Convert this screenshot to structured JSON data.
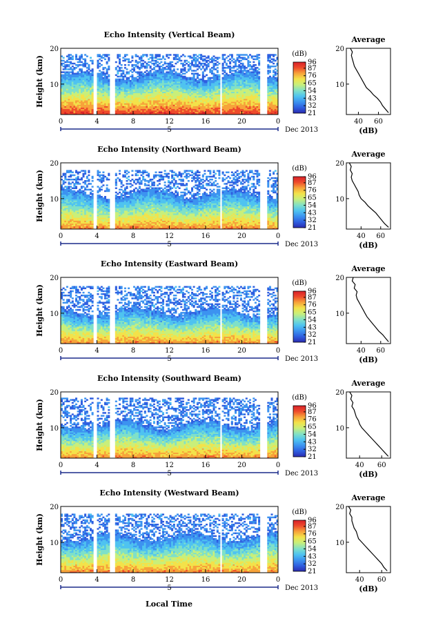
{
  "figure": {
    "xlabel": "Local Time",
    "date_label": "Dec 2013",
    "day_label": "5",
    "colorbar_unit": "(dB)",
    "average_title": "Average",
    "average_xlabel": "(dB)",
    "colors": {
      "scale": [
        "#2b2bb0",
        "#2f5fe0",
        "#3c93f0",
        "#4fc3f0",
        "#7fe0c8",
        "#c9ef7a",
        "#f3e24a",
        "#f7a33a",
        "#ee4b2b",
        "#d8202a"
      ]
    }
  },
  "chart_data": [
    {
      "type": "heatmap",
      "title": "Echo Intensity (Vertical Beam)",
      "ylabel": "Height (km)",
      "xlabel": "Local Time",
      "x_ticks": [
        "0",
        "4",
        "8",
        "12",
        "16",
        "20",
        "0"
      ],
      "y_ticks": [
        "20",
        "10"
      ],
      "xlim": [
        0,
        24
      ],
      "ylim": [
        1.5,
        20
      ],
      "colorbar": {
        "label": "(dB)",
        "ticks": [
          "96",
          "87",
          "76",
          "65",
          "54",
          "43",
          "32",
          "21"
        ],
        "range": [
          21,
          96
        ]
      },
      "echo_top_km": 18.5,
      "cloud_top_km": 12.5,
      "surface_peak_db": 88,
      "gaps_hours": [
        [
          3.6,
          4.0
        ],
        [
          5.5,
          5.9
        ],
        [
          17.6,
          17.9
        ],
        [
          22.1,
          22.8
        ]
      ],
      "average_profile": {
        "title": "Average",
        "xlabel": "(dB)",
        "x_ticks": [
          "40",
          "60"
        ],
        "y_ticks": [
          "20",
          "10"
        ],
        "xlim": [
          28,
          72
        ],
        "height_km": [
          2,
          3,
          4,
          5,
          6,
          7,
          8,
          9,
          10,
          11,
          12,
          13,
          14,
          15,
          16,
          17,
          18,
          19,
          20
        ],
        "db": [
          70,
          67,
          64,
          62,
          59,
          55,
          52,
          48,
          46,
          44,
          42,
          40,
          38,
          36,
          35,
          34,
          33,
          34,
          32
        ]
      }
    },
    {
      "type": "heatmap",
      "title": "Echo Intensity (Northward Beam)",
      "ylabel": "Height (km)",
      "xlabel": "Local Time",
      "x_ticks": [
        "0",
        "4",
        "8",
        "12",
        "16",
        "20",
        "0"
      ],
      "y_ticks": [
        "20",
        "10"
      ],
      "xlim": [
        0,
        24
      ],
      "ylim": [
        1.5,
        20
      ],
      "colorbar": {
        "label": "(dB)",
        "ticks": [
          "96",
          "87",
          "76",
          "65",
          "54",
          "43",
          "32",
          "21"
        ],
        "range": [
          21,
          96
        ]
      },
      "echo_top_km": 18.0,
      "cloud_top_km": 11.5,
      "surface_peak_db": 80,
      "gaps_hours": [
        [
          3.6,
          4.0
        ],
        [
          5.5,
          5.9
        ],
        [
          17.6,
          17.9
        ],
        [
          22.1,
          22.8
        ]
      ],
      "average_profile": {
        "title": "Average",
        "xlabel": "(dB)",
        "x_ticks": [
          "40",
          "60"
        ],
        "y_ticks": [
          "20",
          "10"
        ],
        "xlim": [
          25,
          70
        ],
        "height_km": [
          2,
          3,
          4,
          5,
          6,
          7,
          8,
          9,
          10,
          11,
          12,
          13,
          14,
          15,
          16,
          17,
          18,
          19,
          20
        ],
        "db": [
          68,
          64,
          61,
          58,
          55,
          51,
          47,
          44,
          40,
          38,
          37,
          35,
          33,
          31,
          30,
          31,
          29,
          30,
          28
        ]
      }
    },
    {
      "type": "heatmap",
      "title": "Echo Intensity (Eastward Beam)",
      "ylabel": "Height (km)",
      "xlabel": "Local Time",
      "x_ticks": [
        "0",
        "4",
        "8",
        "12",
        "16",
        "20",
        "0"
      ],
      "y_ticks": [
        "20",
        "10"
      ],
      "xlim": [
        0,
        24
      ],
      "ylim": [
        1.5,
        20
      ],
      "colorbar": {
        "label": "(dB)",
        "ticks": [
          "96",
          "87",
          "76",
          "65",
          "54",
          "43",
          "32",
          "21"
        ],
        "range": [
          21,
          96
        ]
      },
      "echo_top_km": 17.5,
      "cloud_top_km": 10.5,
      "surface_peak_db": 80,
      "gaps_hours": [
        [
          3.6,
          4.0
        ],
        [
          5.5,
          5.9
        ],
        [
          17.6,
          17.9
        ],
        [
          22.1,
          22.8
        ]
      ],
      "average_profile": {
        "title": "Average",
        "xlabel": "(dB)",
        "x_ticks": [
          "40",
          "60"
        ],
        "y_ticks": [
          "20",
          "10"
        ],
        "xlim": [
          25,
          70
        ],
        "height_km": [
          2,
          3,
          4,
          5,
          6,
          7,
          8,
          9,
          10,
          11,
          12,
          13,
          14,
          15,
          16,
          17,
          18,
          19,
          20
        ],
        "db": [
          68,
          65,
          62,
          58,
          55,
          52,
          49,
          46,
          44,
          42,
          40,
          38,
          36,
          35,
          36,
          33,
          34,
          31,
          32
        ]
      }
    },
    {
      "type": "heatmap",
      "title": "Echo Intensity (Southward Beam)",
      "ylabel": "Height (km)",
      "xlabel": "Local Time",
      "x_ticks": [
        "0",
        "4",
        "8",
        "12",
        "16",
        "20",
        "0"
      ],
      "y_ticks": [
        "20",
        "10"
      ],
      "xlim": [
        0,
        24
      ],
      "ylim": [
        1.5,
        20
      ],
      "colorbar": {
        "label": "(dB)",
        "ticks": [
          "96",
          "87",
          "76",
          "65",
          "54",
          "43",
          "32",
          "21"
        ],
        "range": [
          21,
          96
        ]
      },
      "echo_top_km": 18.5,
      "cloud_top_km": 11.0,
      "surface_peak_db": 80,
      "gaps_hours": [
        [
          3.6,
          4.0
        ],
        [
          5.5,
          5.9
        ],
        [
          17.6,
          17.9
        ],
        [
          22.1,
          22.8
        ]
      ],
      "average_profile": {
        "title": "Average",
        "xlabel": "(dB)",
        "x_ticks": [
          "40",
          "60"
        ],
        "y_ticks": [
          "20",
          "10"
        ],
        "xlim": [
          28,
          68
        ],
        "height_km": [
          2,
          3,
          4,
          5,
          6,
          7,
          8,
          9,
          10,
          11,
          12,
          13,
          14,
          15,
          16,
          17,
          18,
          19,
          20
        ],
        "db": [
          66,
          63,
          60,
          57,
          54,
          51,
          48,
          45,
          42,
          40,
          39,
          37,
          36,
          35,
          33,
          34,
          32,
          33,
          31
        ]
      }
    },
    {
      "type": "heatmap",
      "title": "Echo Intensity (Westward Beam)",
      "ylabel": "Height (km)",
      "xlabel": "Local Time",
      "x_ticks": [
        "0",
        "4",
        "8",
        "12",
        "16",
        "20",
        "0"
      ],
      "y_ticks": [
        "20",
        "10"
      ],
      "xlim": [
        0,
        24
      ],
      "ylim": [
        1.5,
        20
      ],
      "colorbar": {
        "label": "(dB)",
        "ticks": [
          "96",
          "87",
          "76",
          "65",
          "54",
          "43",
          "32",
          "21"
        ],
        "range": [
          21,
          96
        ]
      },
      "echo_top_km": 18.0,
      "cloud_top_km": 11.5,
      "surface_peak_db": 80,
      "gaps_hours": [
        [
          3.6,
          4.0
        ],
        [
          5.5,
          5.9
        ],
        [
          17.6,
          17.9
        ],
        [
          22.1,
          22.8
        ]
      ],
      "average_profile": {
        "title": "Average",
        "xlabel": "(dB)",
        "x_ticks": [
          "40",
          "60"
        ],
        "y_ticks": [
          "20",
          "10"
        ],
        "xlim": [
          28,
          68
        ],
        "height_km": [
          2,
          3,
          4,
          5,
          6,
          7,
          8,
          9,
          10,
          11,
          12,
          13,
          14,
          15,
          16,
          17,
          18,
          19,
          20
        ],
        "db": [
          65,
          62,
          60,
          57,
          54,
          51,
          48,
          45,
          42,
          39,
          38,
          37,
          35,
          34,
          33,
          33,
          31,
          32,
          30
        ]
      }
    }
  ]
}
